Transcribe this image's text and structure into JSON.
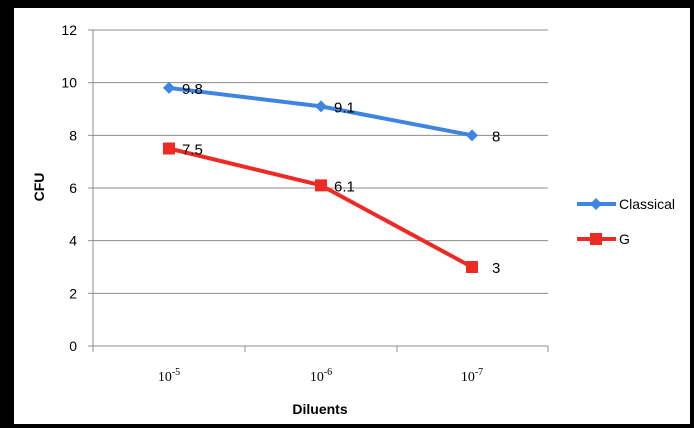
{
  "chart_data": {
    "type": "line",
    "title": "",
    "xlabel": "Diluents",
    "ylabel": "CFU",
    "categories": [
      {
        "base": "10",
        "exp": "-5"
      },
      {
        "base": "10",
        "exp": "-6"
      },
      {
        "base": "10",
        "exp": "-7"
      }
    ],
    "ylim": [
      0,
      12
    ],
    "yticks": [
      0,
      2,
      4,
      6,
      8,
      10,
      12
    ],
    "grid": "horizontal",
    "legend_position": "right",
    "series": [
      {
        "name": "Classical",
        "values": [
          9.8,
          9.1,
          8
        ],
        "labels": [
          "9.8",
          "9.1",
          "8"
        ],
        "color": "#3d85e0",
        "marker": "diamond"
      },
      {
        "name": "G",
        "values": [
          7.5,
          6.1,
          3
        ],
        "labels": [
          "7.5",
          "6.1",
          "3"
        ],
        "color": "#ee2a24",
        "marker": "square"
      }
    ]
  }
}
